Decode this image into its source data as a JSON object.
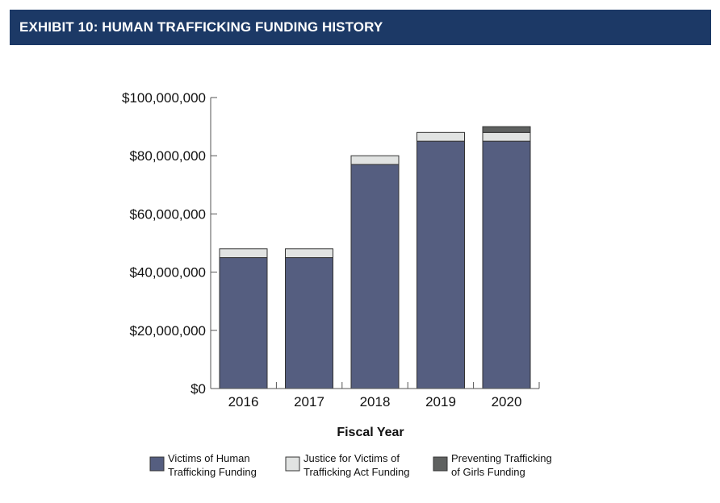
{
  "header": {
    "title": "EXHIBIT 10: HUMAN TRAFFICKING FUNDING HISTORY"
  },
  "chart_data": {
    "type": "bar",
    "stacked": true,
    "title": "",
    "xlabel": "Fiscal Year",
    "ylabel": "",
    "categories": [
      "2016",
      "2017",
      "2018",
      "2019",
      "2020"
    ],
    "ylim": [
      0,
      100000000
    ],
    "yticks": [
      0,
      20000000,
      40000000,
      60000000,
      80000000,
      100000000
    ],
    "ytick_labels": [
      "$0",
      "$20,000,000",
      "$40,000,000",
      "$60,000,000",
      "$80,000,000",
      "$100,000,000"
    ],
    "grid": false,
    "legend_position": "bottom",
    "series": [
      {
        "name": "Victims of Human Trafficking Funding",
        "legend_lines": [
          "Victims of Human",
          "Trafficking Funding"
        ],
        "color": "#555e80",
        "values": [
          45000000,
          45000000,
          77000000,
          85000000,
          85000000
        ]
      },
      {
        "name": "Justice for Victims of Trafficking Act Funding",
        "legend_lines": [
          "Justice for Victims of",
          "Trafficking Act Funding"
        ],
        "color": "#e1e3e2",
        "values": [
          3000000,
          3000000,
          3000000,
          3000000,
          3000000
        ]
      },
      {
        "name": "Preventing Trafficking of Girls Funding",
        "legend_lines": [
          "Preventing Trafficking",
          "of Girls Funding"
        ],
        "color": "#5f6160",
        "values": [
          0,
          0,
          0,
          0,
          2000000
        ]
      }
    ]
  },
  "colors": {
    "banner": "#1c3966",
    "axis": "#555555",
    "bar_outline": "#333333"
  }
}
